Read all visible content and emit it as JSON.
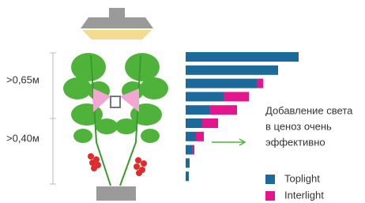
{
  "chart_data": {
    "type": "stacked-hbar",
    "categories": [
      null,
      null,
      null,
      null,
      null,
      null,
      null,
      null,
      null,
      null
    ],
    "series": [
      {
        "name": "Toplight",
        "color": "#1c6a9b",
        "values": [
          143,
          117,
          90,
          48,
          30,
          21,
          13,
          8,
          5,
          4
        ]
      },
      {
        "name": "Interlight",
        "color": "#e3168d",
        "values": [
          0,
          0,
          8,
          32,
          35,
          20,
          10,
          3,
          0,
          0
        ]
      }
    ],
    "height_labels": [
      ">0,65м",
      ">0,40м"
    ],
    "annotation": [
      "Добавление света",
      "в ценоз очень",
      "эффективно"
    ]
  }
}
